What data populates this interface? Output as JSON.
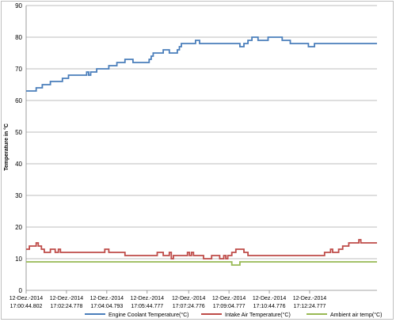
{
  "chart_data": {
    "type": "line",
    "title": "",
    "xlabel": "",
    "ylabel": "Temperature in °C",
    "ylim": [
      0,
      90
    ],
    "yticks": [
      0,
      10,
      20,
      30,
      40,
      50,
      60,
      70,
      80,
      90
    ],
    "grid": "horizontal",
    "legend_position": "bottom",
    "xlim": [
      0,
      870
    ],
    "x_tick_labels": [
      {
        "t": 0,
        "date": "12-Dez.-2014",
        "time": "17:00:44.802"
      },
      {
        "t": 100,
        "date": "12-Dez.-2014",
        "time": "17:02:24.778"
      },
      {
        "t": 200,
        "date": "12-Dez.-2014",
        "time": "17:04:04.793"
      },
      {
        "t": 300,
        "date": "12-Dez.-2014",
        "time": "17:05:44.777"
      },
      {
        "t": 403,
        "date": "12-Dez.-2014",
        "time": "17:07:24.776"
      },
      {
        "t": 503,
        "date": "12-Dez.-2014",
        "time": "17:09:04.777"
      },
      {
        "t": 603,
        "date": "12-Dez.-2014",
        "time": "17:10:44.776"
      },
      {
        "t": 703,
        "date": "12-Dez.-2014",
        "time": "17:12:24.777"
      }
    ],
    "series": [
      {
        "name": "Engine Coolant Temperature(°C)",
        "color": "#4a7ebb",
        "points": [
          [
            0,
            63
          ],
          [
            25,
            63
          ],
          [
            25,
            64
          ],
          [
            40,
            64
          ],
          [
            40,
            65
          ],
          [
            60,
            65
          ],
          [
            60,
            66
          ],
          [
            90,
            66
          ],
          [
            90,
            67
          ],
          [
            105,
            67
          ],
          [
            105,
            68
          ],
          [
            150,
            68
          ],
          [
            150,
            69
          ],
          [
            155,
            69
          ],
          [
            155,
            68
          ],
          [
            160,
            68
          ],
          [
            160,
            69
          ],
          [
            175,
            69
          ],
          [
            175,
            70
          ],
          [
            205,
            70
          ],
          [
            205,
            71
          ],
          [
            225,
            71
          ],
          [
            225,
            72
          ],
          [
            245,
            72
          ],
          [
            245,
            73
          ],
          [
            265,
            73
          ],
          [
            265,
            72
          ],
          [
            305,
            72
          ],
          [
            305,
            73
          ],
          [
            310,
            73
          ],
          [
            310,
            74
          ],
          [
            315,
            74
          ],
          [
            315,
            75
          ],
          [
            340,
            75
          ],
          [
            340,
            76
          ],
          [
            355,
            76
          ],
          [
            355,
            75
          ],
          [
            375,
            75
          ],
          [
            375,
            76
          ],
          [
            380,
            76
          ],
          [
            380,
            77
          ],
          [
            385,
            77
          ],
          [
            385,
            78
          ],
          [
            420,
            78
          ],
          [
            420,
            79
          ],
          [
            430,
            79
          ],
          [
            430,
            78
          ],
          [
            530,
            78
          ],
          [
            530,
            77
          ],
          [
            540,
            77
          ],
          [
            540,
            78
          ],
          [
            550,
            78
          ],
          [
            550,
            79
          ],
          [
            560,
            79
          ],
          [
            560,
            80
          ],
          [
            575,
            80
          ],
          [
            575,
            79
          ],
          [
            600,
            79
          ],
          [
            600,
            80
          ],
          [
            635,
            80
          ],
          [
            635,
            79
          ],
          [
            655,
            79
          ],
          [
            655,
            78
          ],
          [
            700,
            78
          ],
          [
            700,
            77
          ],
          [
            715,
            77
          ],
          [
            715,
            78
          ],
          [
            870,
            78
          ]
        ]
      },
      {
        "name": "Intake Air Temperature(°C)",
        "color": "#be4b48",
        "points": [
          [
            0,
            13
          ],
          [
            8,
            13
          ],
          [
            8,
            14
          ],
          [
            25,
            14
          ],
          [
            25,
            15
          ],
          [
            30,
            15
          ],
          [
            30,
            14
          ],
          [
            38,
            14
          ],
          [
            38,
            13
          ],
          [
            45,
            13
          ],
          [
            45,
            12
          ],
          [
            60,
            12
          ],
          [
            60,
            13
          ],
          [
            72,
            13
          ],
          [
            72,
            12
          ],
          [
            80,
            12
          ],
          [
            80,
            13
          ],
          [
            85,
            13
          ],
          [
            85,
            12
          ],
          [
            195,
            12
          ],
          [
            195,
            13
          ],
          [
            205,
            13
          ],
          [
            205,
            12
          ],
          [
            245,
            12
          ],
          [
            245,
            11
          ],
          [
            325,
            11
          ],
          [
            325,
            12
          ],
          [
            340,
            12
          ],
          [
            340,
            11
          ],
          [
            355,
            11
          ],
          [
            355,
            12
          ],
          [
            360,
            12
          ],
          [
            360,
            10
          ],
          [
            365,
            10
          ],
          [
            365,
            11
          ],
          [
            400,
            11
          ],
          [
            400,
            12
          ],
          [
            405,
            12
          ],
          [
            405,
            11
          ],
          [
            410,
            11
          ],
          [
            410,
            12
          ],
          [
            415,
            12
          ],
          [
            415,
            11
          ],
          [
            440,
            11
          ],
          [
            440,
            10
          ],
          [
            460,
            10
          ],
          [
            460,
            11
          ],
          [
            480,
            11
          ],
          [
            480,
            10
          ],
          [
            490,
            10
          ],
          [
            490,
            11
          ],
          [
            495,
            11
          ],
          [
            495,
            10
          ],
          [
            500,
            10
          ],
          [
            500,
            11
          ],
          [
            510,
            11
          ],
          [
            510,
            12
          ],
          [
            520,
            12
          ],
          [
            520,
            13
          ],
          [
            540,
            13
          ],
          [
            540,
            12
          ],
          [
            550,
            12
          ],
          [
            550,
            11
          ],
          [
            740,
            11
          ],
          [
            740,
            12
          ],
          [
            755,
            12
          ],
          [
            755,
            13
          ],
          [
            760,
            13
          ],
          [
            760,
            12
          ],
          [
            775,
            12
          ],
          [
            775,
            13
          ],
          [
            785,
            13
          ],
          [
            785,
            14
          ],
          [
            800,
            14
          ],
          [
            800,
            15
          ],
          [
            825,
            15
          ],
          [
            825,
            16
          ],
          [
            830,
            16
          ],
          [
            830,
            15
          ],
          [
            870,
            15
          ]
        ]
      },
      {
        "name": "Ambient air temp(°C)",
        "color": "#98b954",
        "points": [
          [
            0,
            9
          ],
          [
            510,
            9
          ],
          [
            510,
            8
          ],
          [
            530,
            8
          ],
          [
            530,
            9
          ],
          [
            870,
            9
          ]
        ]
      }
    ]
  }
}
